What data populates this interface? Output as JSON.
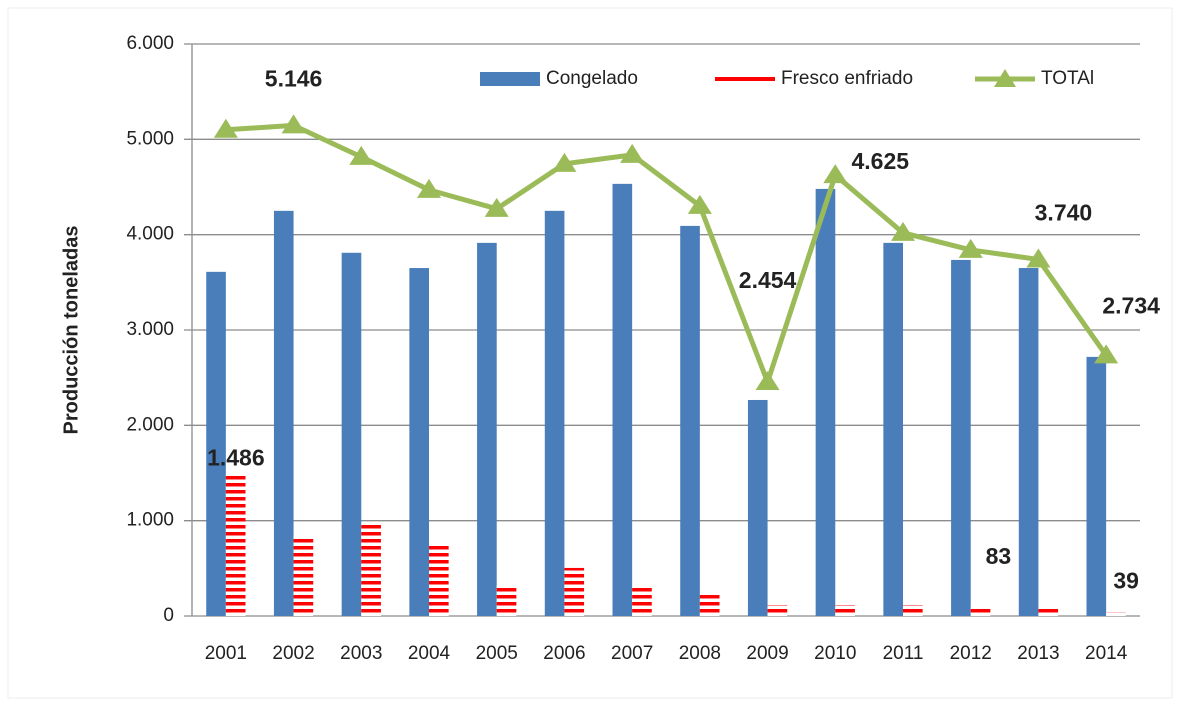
{
  "chart_data": {
    "type": "bar-line",
    "y_label": "Producción toneladas",
    "categories": [
      "2001",
      "2002",
      "2003",
      "2004",
      "2005",
      "2006",
      "2007",
      "2008",
      "2009",
      "2010",
      "2011",
      "2012",
      "2013",
      "2014"
    ],
    "series": [
      {
        "name": "Congelado",
        "type": "bar",
        "color": "#4a7ebb",
        "values": [
          3610,
          4250,
          3810,
          3650,
          3914,
          4250,
          4533,
          4092,
          2266,
          4480,
          3914,
          3735,
          3650,
          2718
        ]
      },
      {
        "name": "Fresco enfriado",
        "type": "bar",
        "color": "#ff0000",
        "values": [
          1486,
          840,
          965,
          735,
          325,
          504,
          294,
          220,
          115,
          115,
          115,
          94,
          83,
          39
        ],
        "value_labels": [
          "1.486",
          null,
          null,
          null,
          null,
          null,
          null,
          null,
          null,
          null,
          null,
          null,
          "83",
          "39"
        ]
      },
      {
        "name": "TOTAl",
        "type": "line",
        "color": "#9bbb59",
        "values": [
          5100,
          5146,
          4816,
          4470,
          4271,
          4743,
          4837,
          4302,
          2454,
          4625,
          4019,
          3840,
          3740,
          2734
        ],
        "value_labels": [
          null,
          "5.146",
          null,
          null,
          null,
          null,
          null,
          null,
          "2.454",
          "4.625",
          null,
          null,
          "3.740",
          "2.734"
        ]
      }
    ],
    "ylim": [
      0,
      6000
    ],
    "yticks": [
      0,
      {
        "value": 1000,
        "label": "1.000"
      },
      {
        "value": 2000,
        "label": "2.000"
      },
      {
        "value": 3000,
        "label": "3.000"
      },
      {
        "value": 4000,
        "label": "4.000"
      },
      {
        "value": 5000,
        "label": "5.000"
      },
      {
        "value": 6000,
        "label": "6.000"
      }
    ],
    "grid": true
  }
}
